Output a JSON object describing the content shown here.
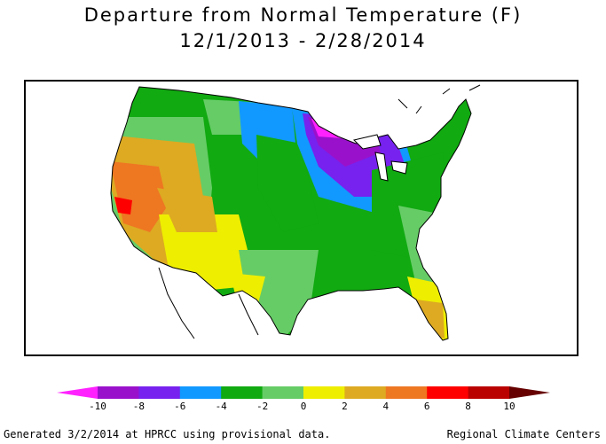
{
  "map": {
    "title_line1": "Departure from Normal Temperature (F)",
    "title_line2": "12/1/2013 - 2/28/2014",
    "legend": {
      "ticks": [
        "-10",
        "-8",
        "-6",
        "-4",
        "-2",
        "0",
        "2",
        "4",
        "6",
        "8",
        "10"
      ],
      "colors": [
        "#ff22ff",
        "#9a11cc",
        "#7722ee",
        "#1199ff",
        "#11aa11",
        "#66cc66",
        "#eeee00",
        "#ddaa22",
        "#ee7722",
        "#ff0000",
        "#bb0000",
        "#660000"
      ]
    },
    "footer_left": "Generated 3/2/2014 at HPRCC using provisional data.",
    "footer_right": "Regional Climate Centers"
  }
}
